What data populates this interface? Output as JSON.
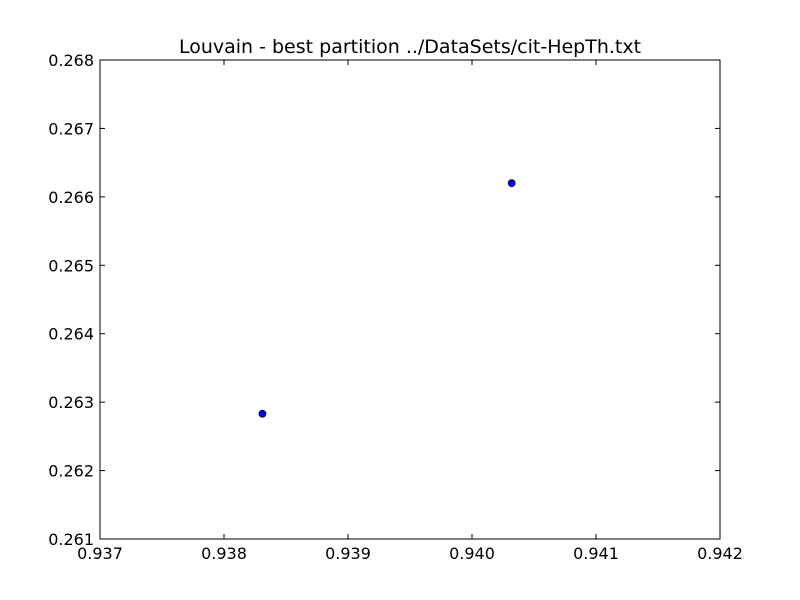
{
  "chart_data": {
    "type": "scatter",
    "title": "Louvain - best partition ../DataSets/cit-HepTh.txt",
    "xlabel": "",
    "ylabel": "",
    "xlim": [
      0.937,
      0.942
    ],
    "ylim": [
      0.261,
      0.268
    ],
    "x_ticks": [
      "0.937",
      "0.938",
      "0.939",
      "0.940",
      "0.941",
      "0.942"
    ],
    "y_ticks": [
      "0.261",
      "0.262",
      "0.263",
      "0.264",
      "0.265",
      "0.266",
      "0.267",
      "0.268"
    ],
    "grid": false,
    "points": [
      {
        "x": 0.93831,
        "y": 0.26283
      },
      {
        "x": 0.94032,
        "y": 0.2662
      }
    ],
    "marker_color": "#0000ff"
  }
}
